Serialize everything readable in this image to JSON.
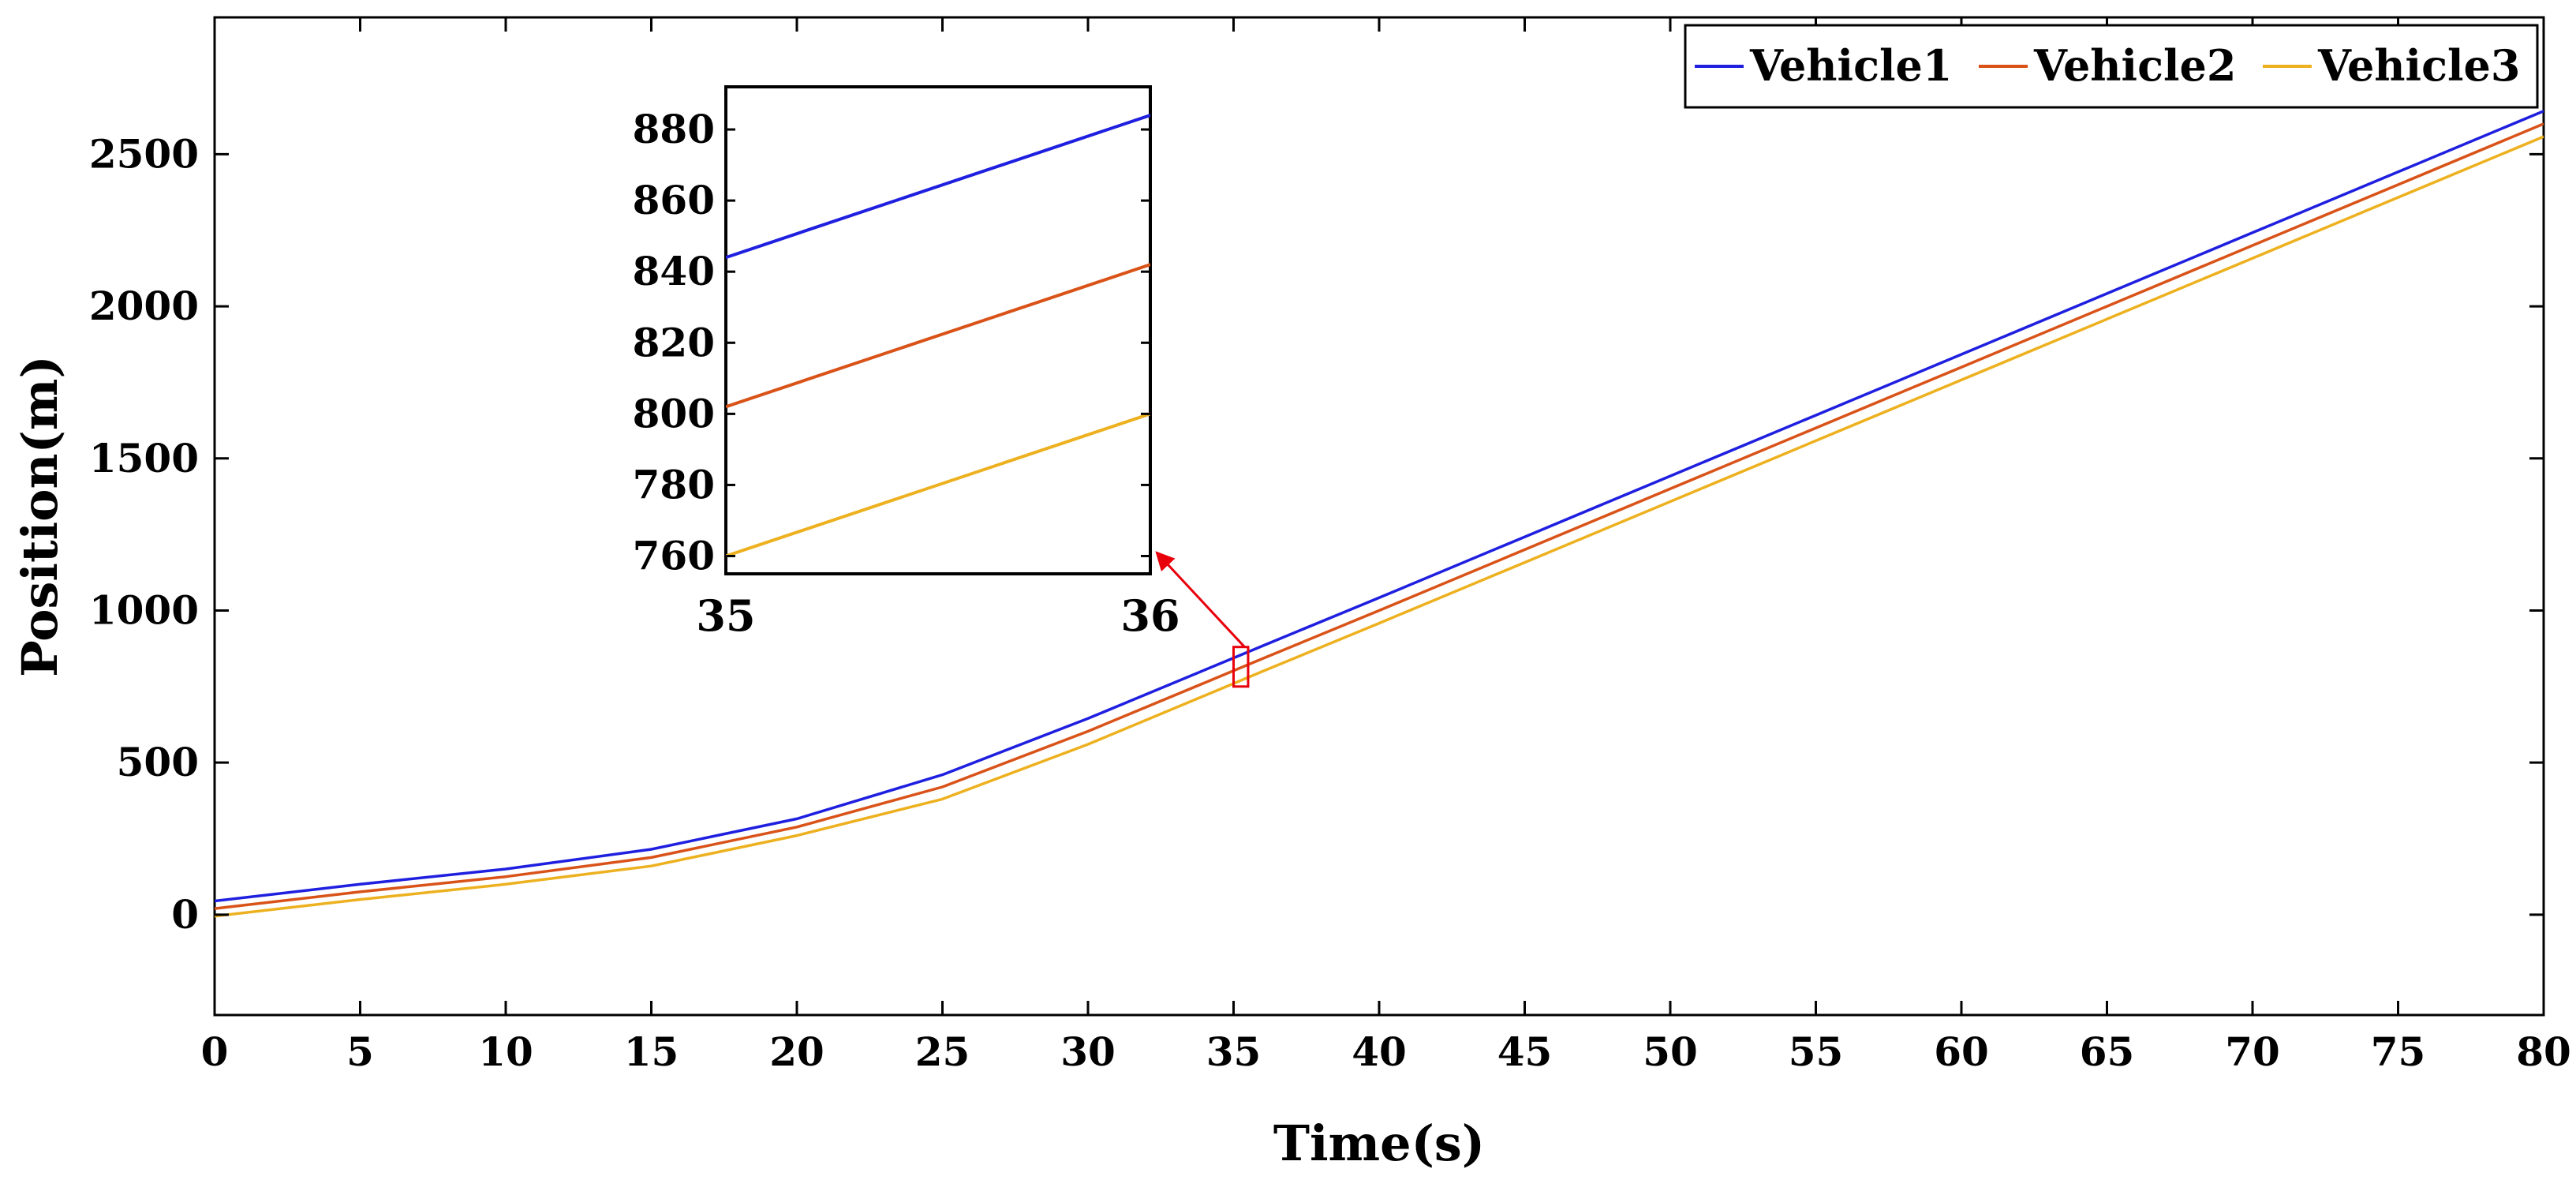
{
  "chart_data": {
    "type": "line",
    "title": "",
    "xlabel": "Time(s)",
    "ylabel": "Position(m)",
    "xlim": [
      0,
      80
    ],
    "ylim": [
      -330,
      2950
    ],
    "xticks": [
      0,
      5,
      10,
      15,
      20,
      25,
      30,
      35,
      40,
      45,
      50,
      55,
      60,
      65,
      70,
      75,
      80
    ],
    "yticks": [
      0,
      500,
      1000,
      1500,
      2000,
      2500
    ],
    "legend_position": "top-right",
    "grid": false,
    "series": [
      {
        "name": "Vehicle1",
        "color": "#1f1fe0",
        "x": [
          0,
          5,
          10,
          15,
          20,
          25,
          30,
          35,
          36,
          40,
          45,
          50,
          55,
          60,
          65,
          70,
          75,
          80
        ],
        "y": [
          45,
          100,
          150,
          215,
          315,
          460,
          645,
          844,
          884,
          1042,
          1242,
          1442,
          1642,
          1842,
          2042,
          2242,
          2442,
          2642
        ]
      },
      {
        "name": "Vehicle2",
        "color": "#d95319",
        "x": [
          0,
          5,
          10,
          15,
          20,
          25,
          30,
          35,
          36,
          40,
          45,
          50,
          55,
          60,
          65,
          70,
          75,
          80
        ],
        "y": [
          20,
          75,
          125,
          188,
          288,
          420,
          603,
          802,
          842,
          1000,
          1200,
          1400,
          1600,
          1800,
          2000,
          2200,
          2400,
          2600
        ]
      },
      {
        "name": "Vehicle3",
        "color": "#edb120",
        "x": [
          0,
          5,
          10,
          15,
          20,
          25,
          30,
          35,
          36,
          40,
          45,
          50,
          55,
          60,
          65,
          70,
          75,
          80
        ],
        "y": [
          -5,
          50,
          100,
          160,
          260,
          380,
          560,
          760,
          800,
          958,
          1158,
          1358,
          1558,
          1758,
          1958,
          2158,
          2358,
          2558
        ]
      }
    ],
    "inset": {
      "xlim": [
        35,
        36
      ],
      "ylim": [
        755,
        892
      ],
      "xticks": [
        35,
        36
      ],
      "yticks": [
        760,
        780,
        800,
        820,
        840,
        860,
        880
      ],
      "zoom_region": {
        "x": [
          35,
          35.5
        ],
        "y": [
          750,
          880
        ]
      },
      "series": [
        {
          "name": "Vehicle1",
          "x": [
            35,
            36
          ],
          "y": [
            844,
            884
          ]
        },
        {
          "name": "Vehicle2",
          "x": [
            35,
            36
          ],
          "y": [
            802,
            842
          ]
        },
        {
          "name": "Vehicle3",
          "x": [
            35,
            36
          ],
          "y": [
            760,
            800
          ]
        }
      ]
    },
    "annotation_color": "#e8000b"
  }
}
